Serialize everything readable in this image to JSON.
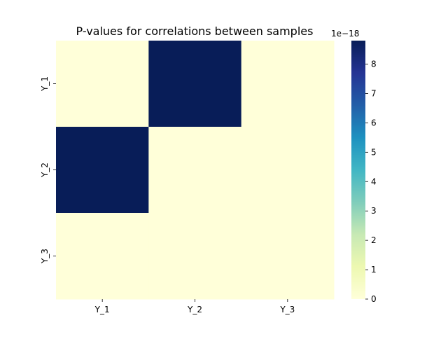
{
  "chart_data": {
    "type": "heatmap",
    "title": "P-values for correlations between samples",
    "x_categories": [
      "Y_1",
      "Y_2",
      "Y_3"
    ],
    "y_categories": [
      "Y_1",
      "Y_2",
      "Y_3"
    ],
    "values": [
      [
        0,
        8.8e-18,
        0
      ],
      [
        8.8e-18,
        0,
        0
      ],
      [
        0,
        0,
        0
      ]
    ],
    "colormap": "YlGnBu",
    "colormap_stops": [
      "#ffffd9",
      "#edf8b1",
      "#c7e9b4",
      "#7fcdbb",
      "#41b6c4",
      "#1d91c0",
      "#225ea8",
      "#253494",
      "#081d58"
    ],
    "colorbar": {
      "range": [
        0,
        8.8e-18
      ],
      "ticks": [
        0,
        1,
        2,
        3,
        4,
        5,
        6,
        7,
        8
      ],
      "tick_labels": [
        "0",
        "1",
        "2",
        "3",
        "4",
        "5",
        "6",
        "7",
        "8"
      ],
      "exponent_label": "1e−18",
      "scale": 1e-18
    },
    "grid": false
  }
}
